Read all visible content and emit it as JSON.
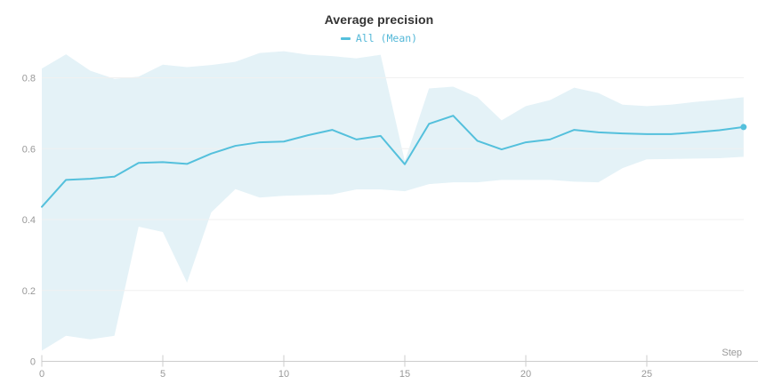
{
  "chart": {
    "title": "Average precision",
    "legend": {
      "marker": "dash",
      "label": "All (Mean)"
    },
    "xlabel": "Step",
    "colors": {
      "line": "#54c0dc",
      "band": "#e4f2f7",
      "legend_text": "#54b8d8",
      "title": "#333333",
      "tick_label": "#999999",
      "axis": "#cccccc",
      "gridline": "#f0f0f0"
    }
  },
  "chart_data": {
    "type": "line",
    "title": "Average precision",
    "xlabel": "Step",
    "ylabel": "",
    "legend_position": "top-center",
    "grid": "horizontal-only",
    "xlim": [
      0,
      29.6
    ],
    "ylim": [
      0,
      0.9
    ],
    "xticks": [
      0,
      5,
      10,
      15,
      20,
      25
    ],
    "yticks": [
      0,
      0.2,
      0.4,
      0.6,
      0.8
    ],
    "ytick_labels": [
      "0",
      "0.2",
      "0.4",
      "0.6",
      "0.8"
    ],
    "x": [
      0,
      1,
      2,
      3,
      4,
      5,
      6,
      7,
      8,
      9,
      10,
      11,
      12,
      13,
      14,
      15,
      16,
      17,
      18,
      19,
      20,
      21,
      22,
      23,
      24,
      25,
      26,
      27,
      28,
      29
    ],
    "series": [
      {
        "name": "All (Mean)",
        "values": [
          0.436,
          0.512,
          0.515,
          0.521,
          0.56,
          0.562,
          0.557,
          0.586,
          0.608,
          0.618,
          0.62,
          0.638,
          0.653,
          0.626,
          0.636,
          0.556,
          0.67,
          0.693,
          0.622,
          0.598,
          0.618,
          0.626,
          0.653,
          0.646,
          0.643,
          0.641,
          0.641,
          0.646,
          0.652,
          0.661
        ],
        "end_marker": true
      }
    ],
    "band": {
      "name": "min/max envelope",
      "upper": [
        0.826,
        0.866,
        0.82,
        0.797,
        0.803,
        0.837,
        0.83,
        0.836,
        0.845,
        0.87,
        0.875,
        0.865,
        0.861,
        0.855,
        0.865,
        0.565,
        0.77,
        0.775,
        0.745,
        0.68,
        0.72,
        0.737,
        0.772,
        0.757,
        0.724,
        0.72,
        0.724,
        0.732,
        0.738,
        0.745
      ],
      "lower": [
        0.03,
        0.072,
        0.062,
        0.072,
        0.38,
        0.365,
        0.222,
        0.42,
        0.486,
        0.462,
        0.467,
        0.469,
        0.471,
        0.485,
        0.485,
        0.48,
        0.5,
        0.505,
        0.505,
        0.512,
        0.512,
        0.512,
        0.507,
        0.505,
        0.545,
        0.57,
        0.571,
        0.572,
        0.573,
        0.577
      ]
    }
  }
}
